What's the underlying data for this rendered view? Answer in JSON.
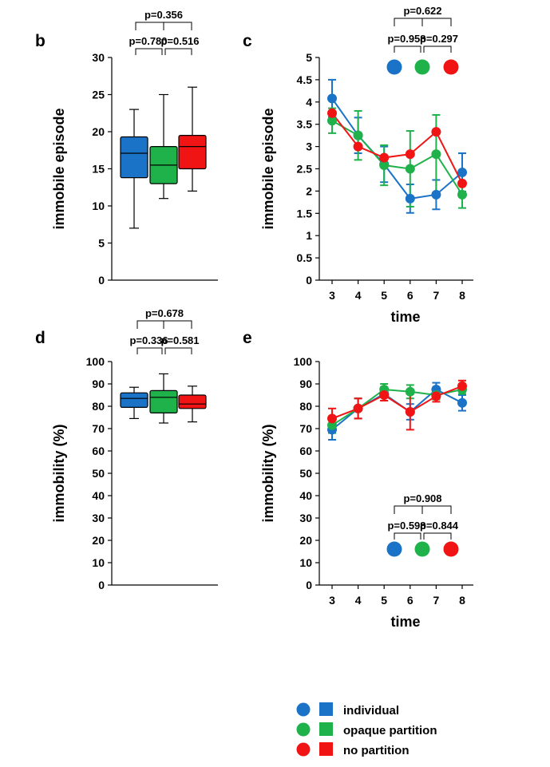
{
  "colors": {
    "individual": "#1a73c7",
    "opaque": "#1fb24b",
    "none": "#f01414"
  },
  "legend": {
    "items": [
      {
        "label": "individual",
        "color": "#1a73c7"
      },
      {
        "label": "opaque partition",
        "color": "#1fb24b"
      },
      {
        "label": "no partition",
        "color": "#f01414"
      }
    ]
  },
  "chart_data": [
    {
      "panel": "b",
      "type": "box",
      "ylabel": "immobile episode",
      "ylim": [
        0,
        30
      ],
      "yticks": [
        0,
        5,
        10,
        15,
        20,
        25,
        30
      ],
      "boxes": [
        {
          "group": "individual",
          "min": 7,
          "q1": 13.8,
          "median": 17.1,
          "q3": 19.3,
          "max": 23
        },
        {
          "group": "opaque partition",
          "min": 11,
          "q1": 13,
          "median": 15.5,
          "q3": 18,
          "max": 25
        },
        {
          "group": "no partition",
          "min": 12,
          "q1": 15,
          "median": 18,
          "q3": 19.5,
          "max": 26
        }
      ],
      "pvalues": {
        "top": "p=0.356",
        "left": "p=0.780",
        "right": "p=0.516"
      }
    },
    {
      "panel": "c",
      "type": "line",
      "ylabel": "immobile episode",
      "xlabel": "time",
      "x": [
        3,
        4,
        5,
        6,
        7,
        8
      ],
      "ylim": [
        0,
        5
      ],
      "yticks": [
        0,
        0.5,
        1,
        1.5,
        2,
        2.5,
        3,
        3.5,
        4,
        4.5,
        5
      ],
      "ytick_labels": [
        "0",
        "0.5",
        "1",
        "1.5",
        "2",
        "2.5",
        "3",
        "3.5",
        "4",
        "4.5",
        "5"
      ],
      "series": [
        {
          "name": "individual",
          "values": [
            4.08,
            3.25,
            2.6,
            1.83,
            1.92,
            2.42
          ],
          "errors": [
            0.42,
            0.4,
            0.4,
            0.32,
            0.33,
            0.43
          ]
        },
        {
          "name": "opaque partition",
          "values": [
            3.58,
            3.25,
            2.58,
            2.5,
            2.83,
            1.92
          ],
          "errors": [
            0.28,
            0.55,
            0.45,
            0.85,
            0.88,
            0.3
          ]
        },
        {
          "name": "no partition",
          "values": [
            3.75,
            3.0,
            2.75,
            2.83,
            3.33,
            2.17
          ],
          "errors": [
            0,
            0,
            0,
            0,
            0,
            0
          ]
        }
      ],
      "pvalues": {
        "top": "p=0.622",
        "left": "p=0.958",
        "right": "p=0.297"
      }
    },
    {
      "panel": "d",
      "type": "box",
      "ylabel": "immobility (%)",
      "ylim": [
        0,
        100
      ],
      "yticks": [
        0,
        10,
        20,
        30,
        40,
        50,
        60,
        70,
        80,
        90,
        100
      ],
      "boxes": [
        {
          "group": "individual",
          "min": 74.5,
          "q1": 79.5,
          "median": 83.5,
          "q3": 86,
          "max": 88.5
        },
        {
          "group": "opaque partition",
          "min": 72.5,
          "q1": 77,
          "median": 84,
          "q3": 87,
          "max": 94.5
        },
        {
          "group": "no partition",
          "min": 73,
          "q1": 79,
          "median": 81,
          "q3": 85,
          "max": 89
        }
      ],
      "pvalues": {
        "top": "p=0.678",
        "left": "p=0.336",
        "right": "p=0.581"
      }
    },
    {
      "panel": "e",
      "type": "line",
      "ylabel": "immobility (%)",
      "xlabel": "time",
      "x": [
        3,
        4,
        5,
        6,
        7,
        8
      ],
      "ylim": [
        0,
        100
      ],
      "yticks": [
        0,
        10,
        20,
        30,
        40,
        50,
        60,
        70,
        80,
        90,
        100
      ],
      "ytick_labels": [
        "0",
        "10",
        "20",
        "30",
        "40",
        "50",
        "60",
        "70",
        "80",
        "90",
        "100"
      ],
      "series": [
        {
          "name": "individual",
          "values": [
            69.5,
            79,
            85.5,
            77.5,
            87.5,
            81.5
          ],
          "errors": [
            4.5,
            4.5,
            3,
            3.5,
            3,
            3.5
          ]
        },
        {
          "name": "opaque partition",
          "values": [
            71.5,
            79,
            87.5,
            86.5,
            85,
            87.5
          ],
          "errors": [
            3.5,
            4.5,
            2.5,
            3,
            2,
            2
          ]
        },
        {
          "name": "no partition",
          "values": [
            74.5,
            79,
            85,
            77.5,
            84.5,
            89
          ],
          "errors": [
            4.5,
            4.5,
            2.5,
            8,
            2.5,
            2.5
          ]
        }
      ],
      "pvalues": {
        "top": "p=0.908",
        "left": "p=0.598",
        "right": "p=0.844"
      }
    }
  ]
}
